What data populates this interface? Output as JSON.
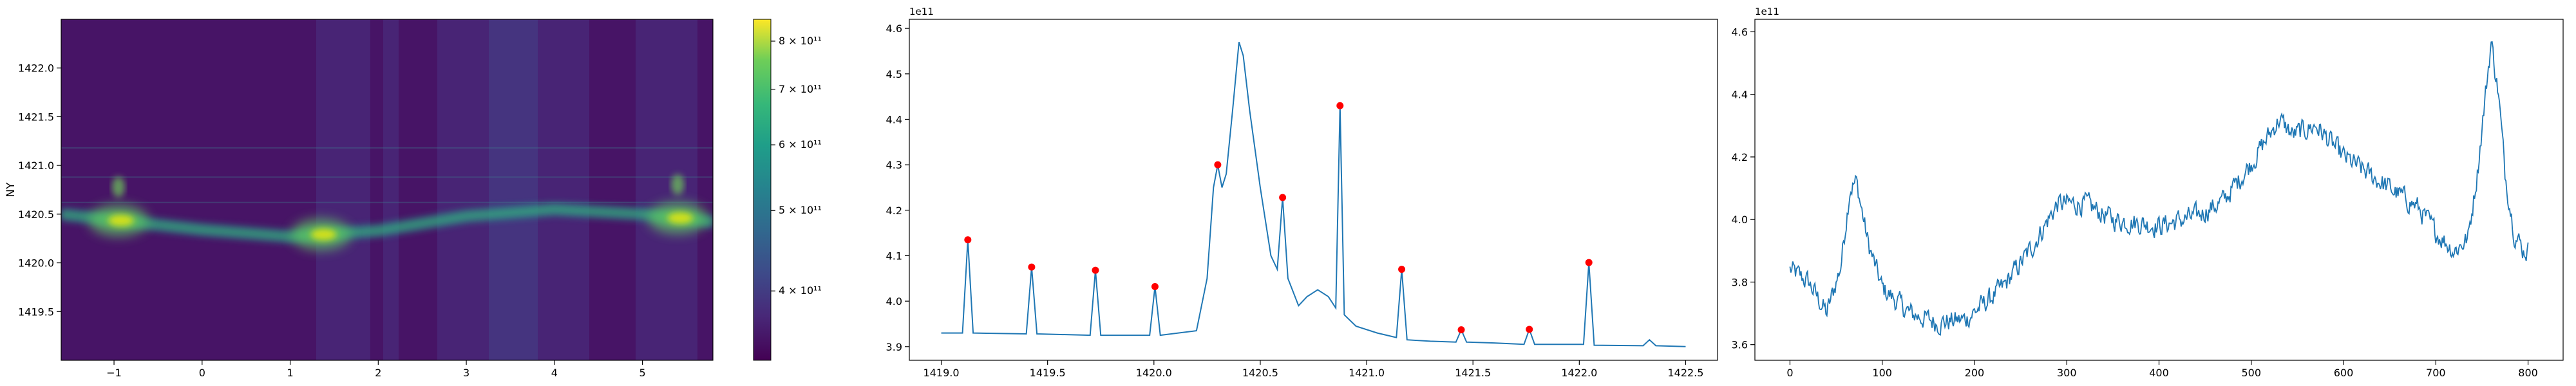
{
  "chart_data": [
    {
      "type": "heatmap",
      "xlabel": "",
      "ylabel": "NY",
      "xlim": [
        -1.6,
        5.8
      ],
      "ylim": [
        1419.0,
        1422.5
      ],
      "xticks": [
        "−1",
        "0",
        "1",
        "2",
        "3",
        "4",
        "5"
      ],
      "yticks": [
        "1419.5",
        "1420.0",
        "1420.5",
        "1421.0",
        "1421.5",
        "1422.0"
      ],
      "colormap": "viridis",
      "colorbar": {
        "scale": "log",
        "range": [
          330000000000.0,
          850000000000.0
        ],
        "ticks": [
          {
            "value": 400000000000.0,
            "label": "4 × 10¹¹"
          },
          {
            "value": 500000000000.0,
            "label": "5 × 10¹¹"
          },
          {
            "value": 600000000000.0,
            "label": "6 × 10¹¹"
          },
          {
            "value": 700000000000.0,
            "label": "7 × 10¹¹"
          },
          {
            "value": 800000000000.0,
            "label": "8 × 10¹¹"
          }
        ]
      },
      "bright_band_y": [
        [
          -1.6,
          1420.5
        ],
        [
          -0.8,
          1420.42
        ],
        [
          0.0,
          1420.34
        ],
        [
          1.0,
          1420.27
        ],
        [
          2.0,
          1420.33
        ],
        [
          3.0,
          1420.48
        ],
        [
          4.0,
          1420.55
        ],
        [
          5.0,
          1420.5
        ],
        [
          5.8,
          1420.42
        ]
      ],
      "hot_spots_x": [
        -0.95,
        1.35,
        5.4
      ]
    },
    {
      "type": "line",
      "offset_text": "1e11",
      "xlim": [
        1418.85,
        1422.65
      ],
      "ylim": [
        3.87,
        4.62
      ],
      "xticks": [
        1419.0,
        1419.5,
        1420.0,
        1420.5,
        1421.0,
        1421.5,
        1422.0,
        1422.5
      ],
      "xticklabels": [
        "1419.0",
        "1419.5",
        "1420.0",
        "1420.5",
        "1421.0",
        "1421.5",
        "1422.0",
        "1422.5"
      ],
      "yticks": [
        3.9,
        4.0,
        4.1,
        4.2,
        4.3,
        4.4,
        4.5,
        4.6
      ],
      "yticklabels": [
        "3.9",
        "4.0",
        "4.1",
        "4.2",
        "4.3",
        "4.4",
        "4.5",
        "4.6"
      ],
      "series_color": "#1f77b4",
      "line": [
        [
          1419.0,
          3.93
        ],
        [
          1419.1,
          3.93
        ],
        [
          1419.125,
          4.135
        ],
        [
          1419.15,
          3.93
        ],
        [
          1419.4,
          3.928
        ],
        [
          1419.425,
          4.075
        ],
        [
          1419.45,
          3.928
        ],
        [
          1419.7,
          3.925
        ],
        [
          1419.725,
          4.068
        ],
        [
          1419.75,
          3.925
        ],
        [
          1419.98,
          3.925
        ],
        [
          1420.005,
          4.032
        ],
        [
          1420.03,
          3.925
        ],
        [
          1420.2,
          3.935
        ],
        [
          1420.25,
          4.05
        ],
        [
          1420.28,
          4.25
        ],
        [
          1420.3,
          4.3
        ],
        [
          1420.32,
          4.25
        ],
        [
          1420.34,
          4.28
        ],
        [
          1420.37,
          4.42
        ],
        [
          1420.4,
          4.57
        ],
        [
          1420.42,
          4.54
        ],
        [
          1420.45,
          4.42
        ],
        [
          1420.5,
          4.25
        ],
        [
          1420.55,
          4.1
        ],
        [
          1420.58,
          4.07
        ],
        [
          1420.605,
          4.228
        ],
        [
          1420.63,
          4.05
        ],
        [
          1420.68,
          3.99
        ],
        [
          1420.72,
          4.01
        ],
        [
          1420.77,
          4.025
        ],
        [
          1420.82,
          4.01
        ],
        [
          1420.855,
          3.985
        ],
        [
          1420.875,
          4.43
        ],
        [
          1420.895,
          3.97
        ],
        [
          1420.95,
          3.945
        ],
        [
          1421.05,
          3.93
        ],
        [
          1421.14,
          3.92
        ],
        [
          1421.165,
          4.07
        ],
        [
          1421.19,
          3.915
        ],
        [
          1421.3,
          3.912
        ],
        [
          1421.42,
          3.91
        ],
        [
          1421.445,
          3.937
        ],
        [
          1421.47,
          3.91
        ],
        [
          1421.6,
          3.908
        ],
        [
          1421.74,
          3.905
        ],
        [
          1421.765,
          3.938
        ],
        [
          1421.79,
          3.905
        ],
        [
          1422.02,
          3.905
        ],
        [
          1422.045,
          4.085
        ],
        [
          1422.07,
          3.903
        ],
        [
          1422.3,
          3.902
        ],
        [
          1422.33,
          3.915
        ],
        [
          1422.36,
          3.902
        ],
        [
          1422.5,
          3.9
        ]
      ],
      "peaks": [
        [
          1419.125,
          4.135
        ],
        [
          1419.425,
          4.075
        ],
        [
          1419.725,
          4.068
        ],
        [
          1420.005,
          4.032
        ],
        [
          1420.3,
          4.3
        ],
        [
          1420.605,
          4.228
        ],
        [
          1420.875,
          4.43
        ],
        [
          1421.165,
          4.07
        ],
        [
          1421.445,
          3.937
        ],
        [
          1421.765,
          3.938
        ],
        [
          1422.045,
          4.085
        ]
      ],
      "peak_color": "#ff0000"
    },
    {
      "type": "line",
      "offset_text": "1e11",
      "xlim": [
        -38,
        838
      ],
      "ylim": [
        3.55,
        4.64
      ],
      "xticks": [
        0,
        100,
        200,
        300,
        400,
        500,
        600,
        700,
        800
      ],
      "xticklabels": [
        "0",
        "100",
        "200",
        "300",
        "400",
        "500",
        "600",
        "700",
        "800"
      ],
      "yticks": [
        3.6,
        3.8,
        4.0,
        4.2,
        4.4,
        4.6
      ],
      "yticklabels": [
        "3.6",
        "3.8",
        "4.0",
        "4.2",
        "4.4",
        "4.6"
      ],
      "series_color": "#1f77b4",
      "n_points": 800,
      "trend_points": [
        [
          0,
          3.84
        ],
        [
          20,
          3.8
        ],
        [
          40,
          3.7
        ],
        [
          55,
          3.85
        ],
        [
          65,
          4.1
        ],
        [
          72,
          4.12
        ],
        [
          85,
          3.92
        ],
        [
          100,
          3.78
        ],
        [
          130,
          3.7
        ],
        [
          160,
          3.67
        ],
        [
          190,
          3.68
        ],
        [
          230,
          3.78
        ],
        [
          260,
          3.9
        ],
        [
          290,
          4.05
        ],
        [
          320,
          4.05
        ],
        [
          350,
          4.0
        ],
        [
          400,
          3.98
        ],
        [
          440,
          4.01
        ],
        [
          470,
          4.06
        ],
        [
          500,
          4.18
        ],
        [
          530,
          4.32
        ],
        [
          545,
          4.27
        ],
        [
          570,
          4.3
        ],
        [
          600,
          4.2
        ],
        [
          640,
          4.12
        ],
        [
          680,
          4.04
        ],
        [
          700,
          3.96
        ],
        [
          720,
          3.9
        ],
        [
          735,
          3.94
        ],
        [
          745,
          4.15
        ],
        [
          760,
          4.57
        ],
        [
          768,
          4.4
        ],
        [
          775,
          4.15
        ],
        [
          785,
          3.96
        ],
        [
          795,
          3.9
        ],
        [
          800,
          3.9
        ]
      ],
      "noise_amplitude": 0.03
    }
  ]
}
